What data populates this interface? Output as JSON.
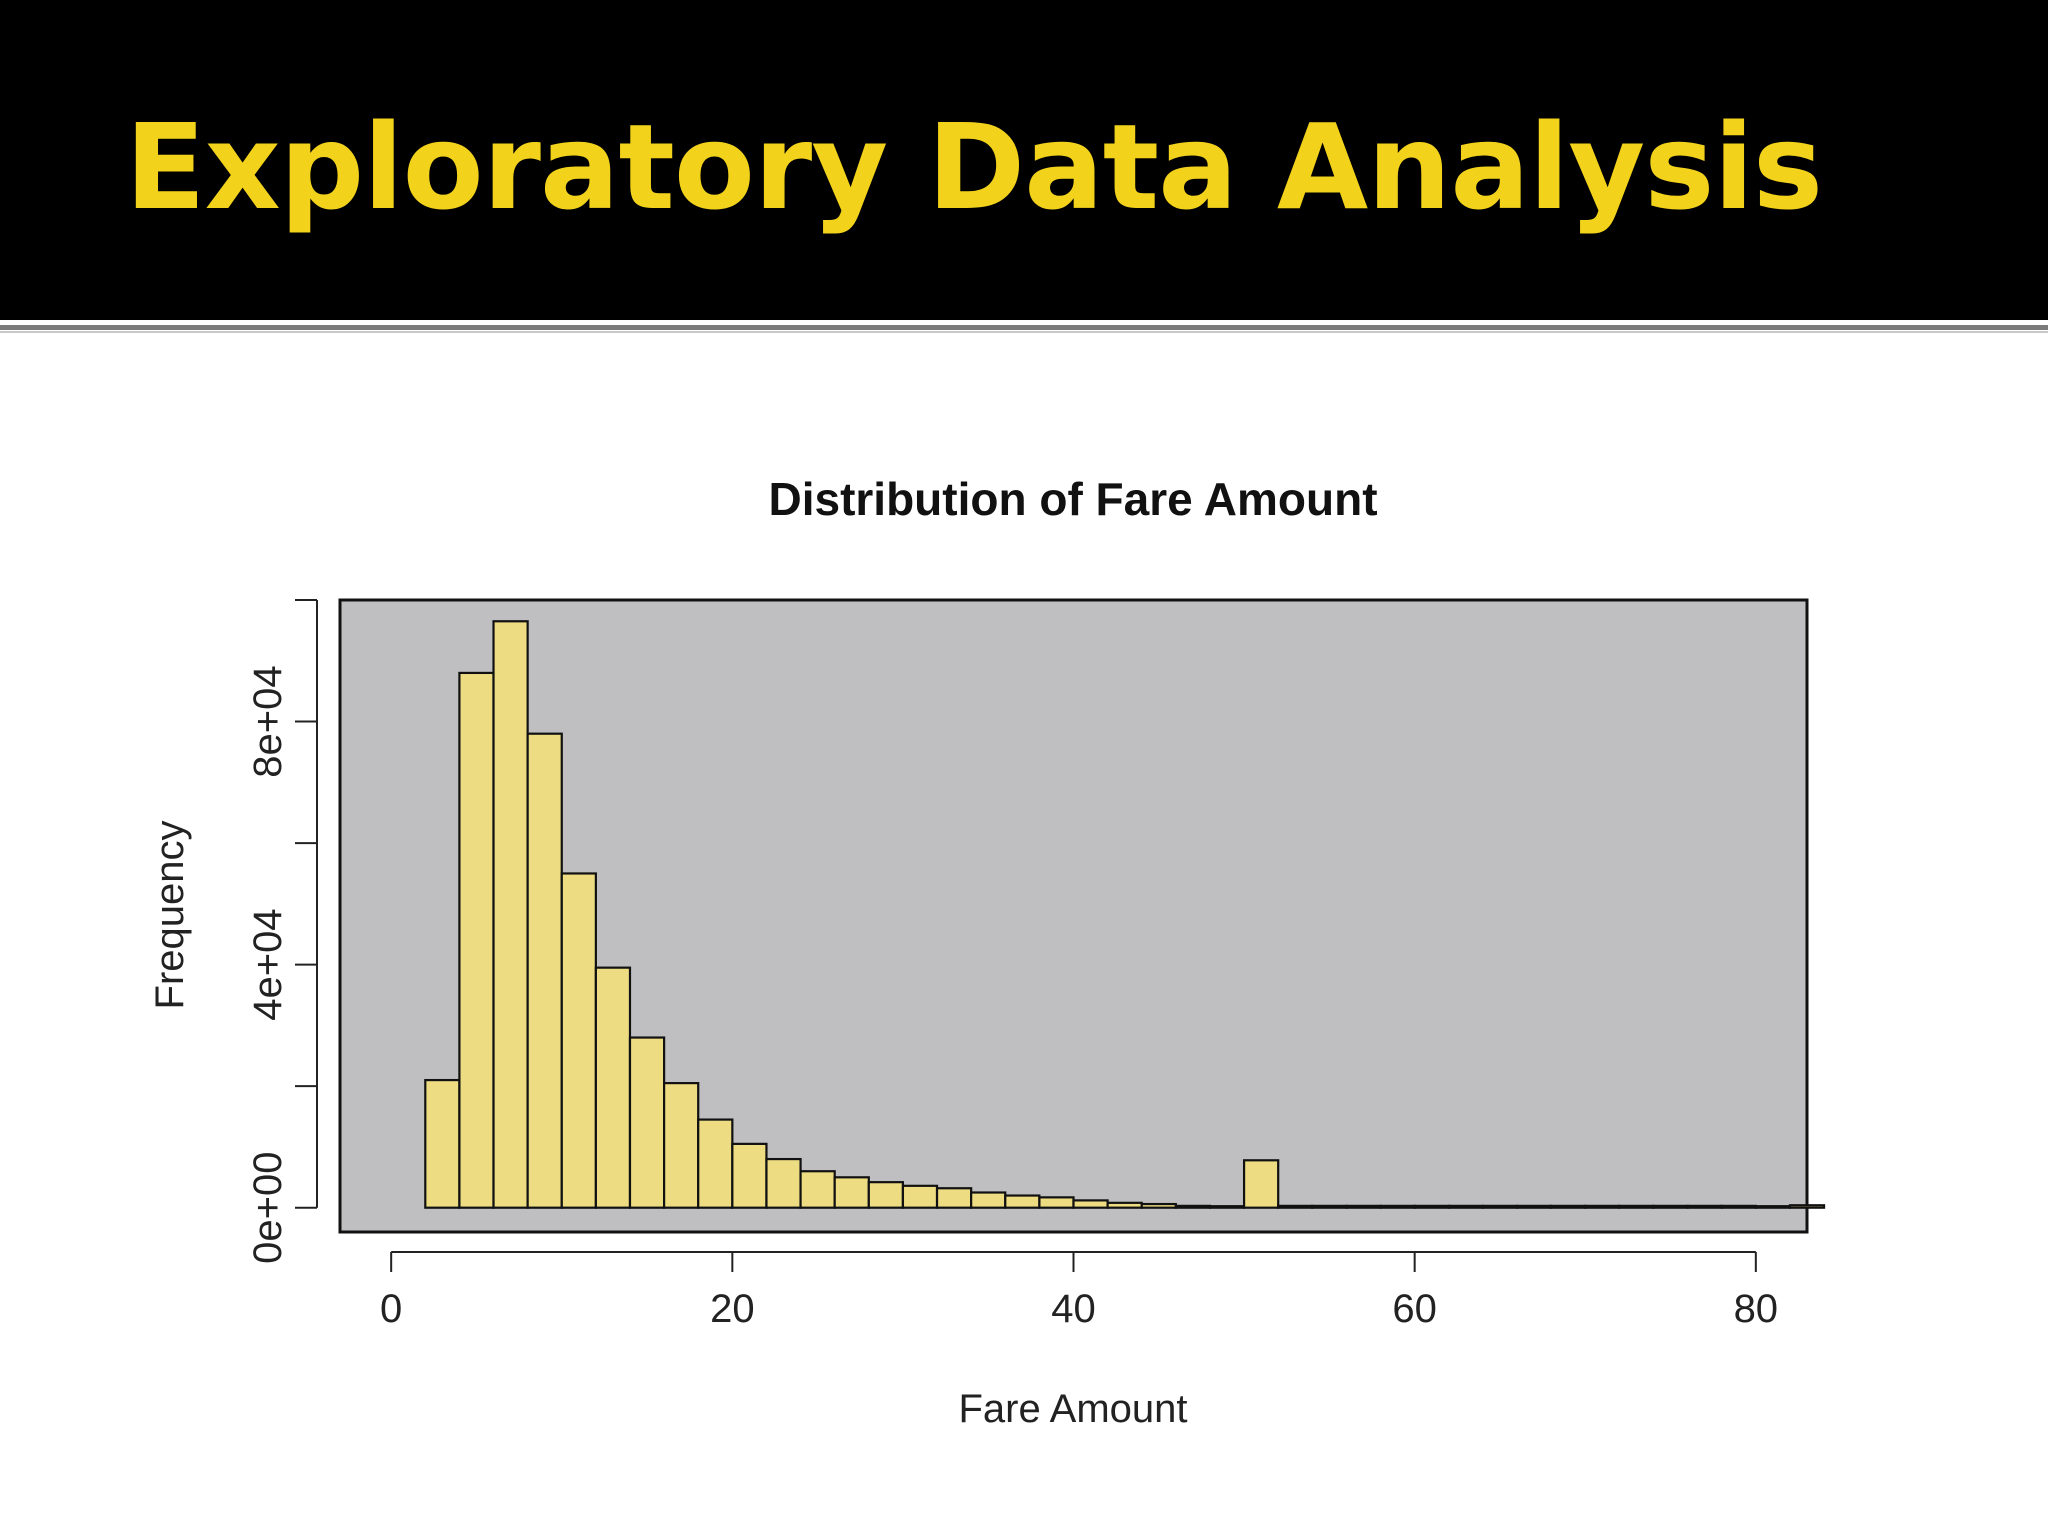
{
  "slide": {
    "title": "Exploratory Data Analysis",
    "title_color": "#f2d21b",
    "header_bg": "#000000"
  },
  "chart_data": {
    "type": "bar",
    "title": "Distribution of Fare Amount",
    "xlabel": "Fare Amount",
    "ylabel": "Frequency",
    "xlim": [
      -3,
      83
    ],
    "ylim": [
      -4000,
      100000
    ],
    "x_ticks": [
      0,
      20,
      40,
      60,
      80
    ],
    "x_tick_labels": [
      "0",
      "20",
      "40",
      "60",
      "80"
    ],
    "y_ticks": [
      0,
      20000,
      40000,
      60000,
      80000,
      100000
    ],
    "y_tick_labels": [
      "0e+00",
      "",
      "4e+04",
      "",
      "8e+04",
      ""
    ],
    "bin_width": 2,
    "bin_edges_start": 2,
    "values": [
      21000,
      88000,
      96500,
      78000,
      55000,
      39500,
      28000,
      20500,
      14500,
      10500,
      8000,
      6000,
      5000,
      4200,
      3600,
      3200,
      2500,
      2000,
      1700,
      1200,
      800,
      600,
      300,
      200,
      7800,
      300,
      300,
      300,
      300,
      300,
      300,
      300,
      300,
      300,
      300,
      300,
      300,
      300,
      300,
      0,
      400
    ],
    "bar_color": "#eddc82",
    "panel_color": "#bfbfc1",
    "grid": false
  }
}
